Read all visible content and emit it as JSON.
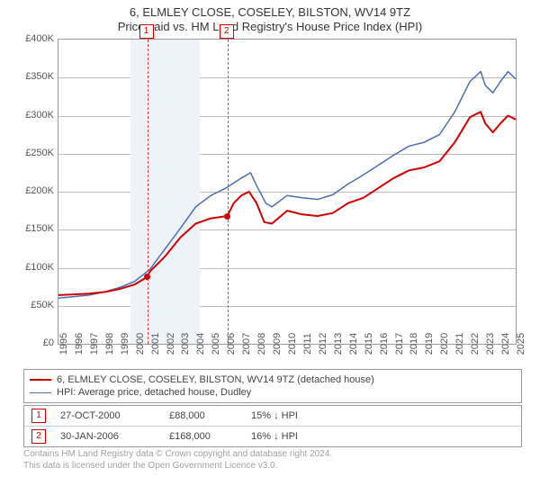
{
  "header": {
    "title": "6, ELMLEY CLOSE, COSELEY, BILSTON, WV14 9TZ",
    "subtitle": "Price paid vs. HM Land Registry's House Price Index (HPI)"
  },
  "chart": {
    "type": "line",
    "x_years_start": 1995,
    "x_years_end": 2025,
    "ylim_gbp": [
      0,
      400000
    ],
    "ytick_step": 50000,
    "currency_symbol": "£",
    "grid_color": "#bbbbbb",
    "border_color": "#999999",
    "background_color": "#ffffff",
    "tick_label_color": "#555555",
    "tick_fontsize": 11,
    "shaded_band": {
      "from_year": 1999.7,
      "to_year": 2004.3,
      "color": "#eef3fa"
    },
    "series": [
      {
        "id": "subject_property",
        "label": "6, ELMLEY CLOSE, COSELEY, BILSTON, WV14 9TZ (detached house)",
        "color": "#d00000",
        "line_width": 2,
        "points_year_price": [
          [
            1995,
            64000
          ],
          [
            1996,
            65000
          ],
          [
            1997,
            66000
          ],
          [
            1998,
            68000
          ],
          [
            1999,
            72000
          ],
          [
            2000,
            78000
          ],
          [
            2000.82,
            88000
          ],
          [
            2001,
            95000
          ],
          [
            2002,
            115000
          ],
          [
            2003,
            140000
          ],
          [
            2004,
            158000
          ],
          [
            2005,
            165000
          ],
          [
            2006.08,
            168000
          ],
          [
            2006.5,
            185000
          ],
          [
            2007,
            195000
          ],
          [
            2007.5,
            200000
          ],
          [
            2008,
            185000
          ],
          [
            2008.5,
            160000
          ],
          [
            2009,
            158000
          ],
          [
            2010,
            175000
          ],
          [
            2011,
            170000
          ],
          [
            2012,
            168000
          ],
          [
            2013,
            172000
          ],
          [
            2014,
            185000
          ],
          [
            2015,
            192000
          ],
          [
            2016,
            205000
          ],
          [
            2017,
            218000
          ],
          [
            2018,
            228000
          ],
          [
            2019,
            232000
          ],
          [
            2020,
            240000
          ],
          [
            2021,
            265000
          ],
          [
            2022,
            298000
          ],
          [
            2022.7,
            305000
          ],
          [
            2023,
            290000
          ],
          [
            2023.5,
            278000
          ],
          [
            2024,
            290000
          ],
          [
            2024.5,
            300000
          ],
          [
            2025,
            295000
          ]
        ]
      },
      {
        "id": "hpi_dudley_detached",
        "label": "HPI: Average price, detached house, Dudley",
        "color": "#4b6db3",
        "line_width": 1.5,
        "points_year_price": [
          [
            1995,
            60000
          ],
          [
            1996,
            62000
          ],
          [
            1997,
            64000
          ],
          [
            1998,
            68000
          ],
          [
            1999,
            74000
          ],
          [
            2000,
            82000
          ],
          [
            2001,
            98000
          ],
          [
            2002,
            125000
          ],
          [
            2003,
            152000
          ],
          [
            2004,
            180000
          ],
          [
            2005,
            195000
          ],
          [
            2006,
            205000
          ],
          [
            2007,
            218000
          ],
          [
            2007.6,
            225000
          ],
          [
            2008,
            208000
          ],
          [
            2008.6,
            185000
          ],
          [
            2009,
            180000
          ],
          [
            2010,
            195000
          ],
          [
            2011,
            192000
          ],
          [
            2012,
            190000
          ],
          [
            2013,
            196000
          ],
          [
            2014,
            210000
          ],
          [
            2015,
            222000
          ],
          [
            2016,
            235000
          ],
          [
            2017,
            248000
          ],
          [
            2018,
            260000
          ],
          [
            2019,
            265000
          ],
          [
            2020,
            275000
          ],
          [
            2021,
            305000
          ],
          [
            2022,
            345000
          ],
          [
            2022.7,
            358000
          ],
          [
            2023,
            340000
          ],
          [
            2023.5,
            330000
          ],
          [
            2024,
            345000
          ],
          [
            2024.5,
            358000
          ],
          [
            2025,
            348000
          ]
        ]
      }
    ],
    "events": [
      {
        "badge": "1",
        "date_label": "27-OCT-2000",
        "year": 2000.82,
        "price_gbp": 88000,
        "price_label": "£88,000",
        "diff_pct_label": "15% ↓ HPI",
        "marker_radius": 3.5,
        "badge_color": "#d00000"
      },
      {
        "badge": "2",
        "date_label": "30-JAN-2006",
        "year": 2006.08,
        "price_gbp": 168000,
        "price_label": "£168,000",
        "diff_pct_label": "16% ↓ HPI",
        "marker_radius": 3.5,
        "badge_color": "#d00000"
      }
    ]
  },
  "legend": {
    "border_color": "#999999",
    "fontsize": 11
  },
  "attribution": {
    "line1": "Contains HM Land Registry data © Crown copyright and database right 2024.",
    "line2": "This data is licensed under the Open Government Licence v3.0.",
    "color": "#a0a0a0",
    "fontsize": 10
  }
}
